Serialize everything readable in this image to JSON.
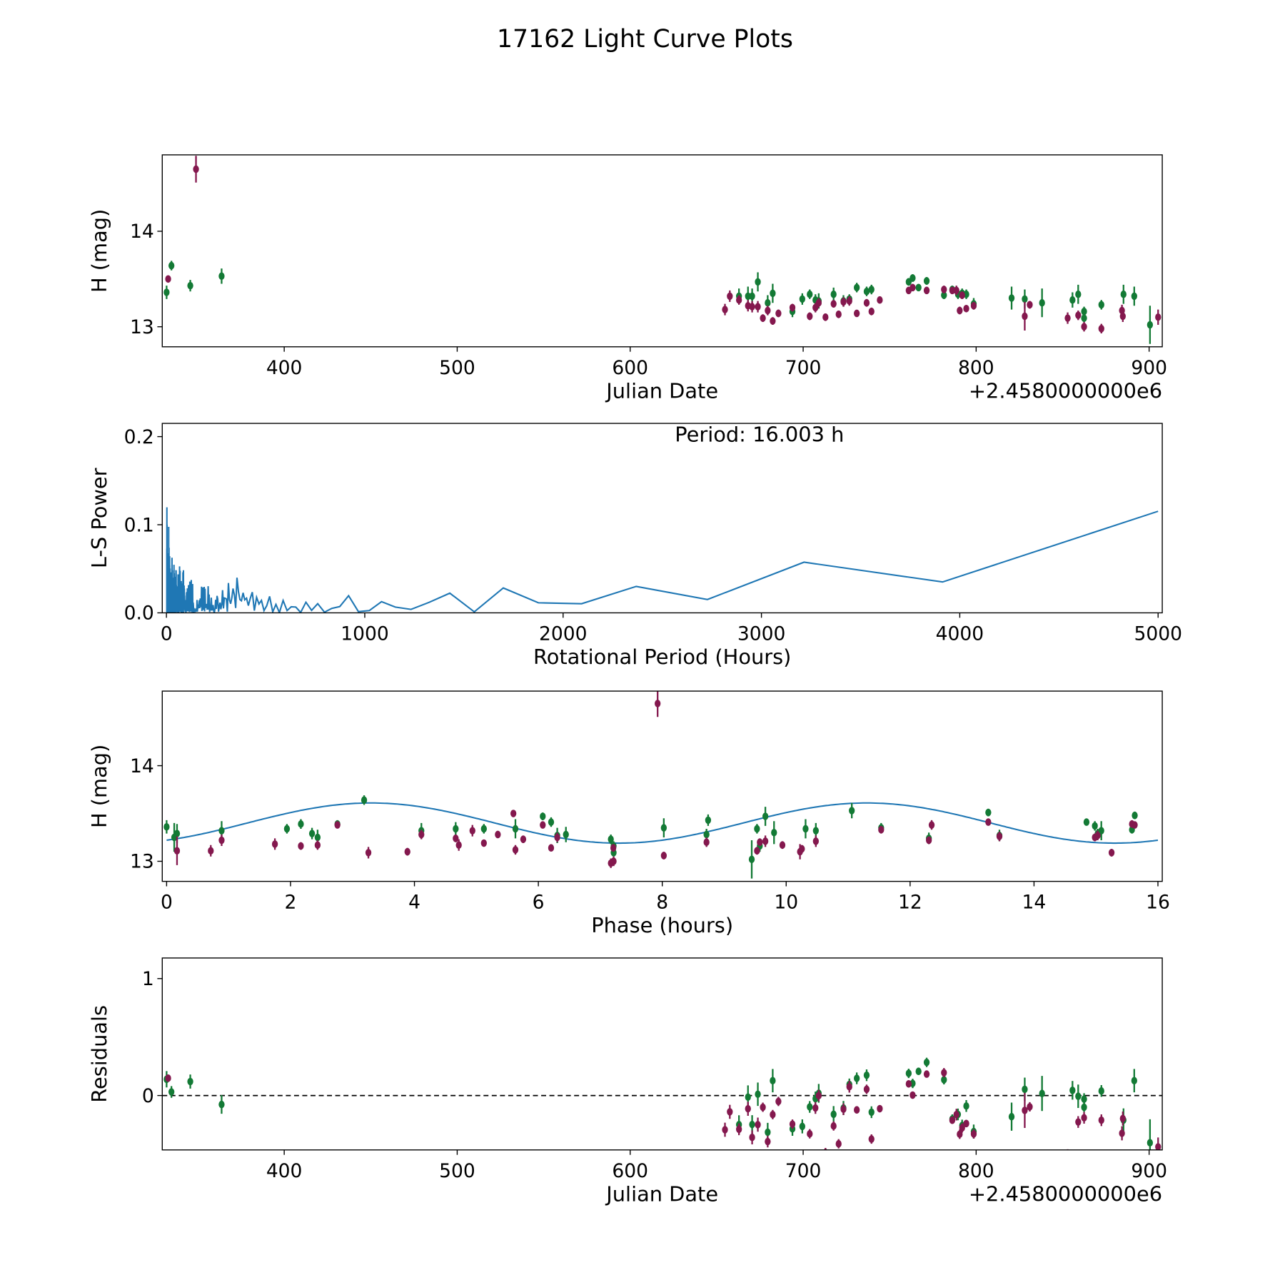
{
  "chart_data": {
    "type": "scatter",
    "title": "17162 Light Curve Plots",
    "colors": {
      "green": "#137a35",
      "purple": "#84184e",
      "line": "#1f77b4"
    },
    "series": [
      {
        "name": "green",
        "points": [
          [
            332.0,
            13.36,
            0.07
          ],
          [
            334.8,
            13.64,
            0.05
          ],
          [
            345.7,
            13.43,
            0.06
          ],
          [
            363.8,
            13.53,
            0.08
          ],
          [
            662.9,
            13.32,
            0.08
          ],
          [
            668.1,
            13.32,
            0.1
          ],
          [
            670.5,
            13.32,
            0.08
          ],
          [
            673.8,
            13.47,
            0.1
          ],
          [
            679.5,
            13.25,
            0.08
          ],
          [
            682.4,
            13.35,
            0.1
          ],
          [
            693.8,
            13.16,
            0.06
          ],
          [
            699.5,
            13.29,
            0.06
          ],
          [
            703.8,
            13.34,
            0.05
          ],
          [
            707.1,
            13.28,
            0.06
          ],
          [
            709.0,
            13.27,
            0.08
          ],
          [
            717.6,
            13.34,
            0.07
          ],
          [
            723.3,
            13.27,
            0.06
          ],
          [
            726.7,
            13.29,
            0.05
          ],
          [
            731.0,
            13.41,
            0.05
          ],
          [
            736.7,
            13.37,
            0.05
          ],
          [
            739.5,
            13.39,
            0.05
          ],
          [
            761.0,
            13.47,
            0.04
          ],
          [
            763.3,
            13.51,
            0.04
          ],
          [
            766.7,
            13.41,
            0.03
          ],
          [
            771.4,
            13.48,
            0.04
          ],
          [
            781.4,
            13.33,
            0.04
          ],
          [
            786.2,
            13.39,
            0.04
          ],
          [
            789.5,
            13.34,
            0.05
          ],
          [
            791.9,
            13.35,
            0.05
          ],
          [
            794.3,
            13.34,
            0.05
          ],
          [
            798.6,
            13.24,
            0.06
          ],
          [
            820.5,
            13.3,
            0.12
          ],
          [
            828.1,
            13.29,
            0.1
          ],
          [
            838.1,
            13.25,
            0.15
          ],
          [
            855.7,
            13.28,
            0.08
          ],
          [
            859.0,
            13.34,
            0.1
          ],
          [
            862.4,
            13.16,
            0.05
          ],
          [
            862.4,
            13.09,
            0.04
          ],
          [
            872.4,
            13.23,
            0.05
          ],
          [
            885.2,
            13.34,
            0.1
          ],
          [
            891.4,
            13.32,
            0.1
          ],
          [
            900.5,
            13.02,
            0.2
          ]
        ]
      },
      {
        "name": "purple",
        "points": [
          [
            332.9,
            13.5,
            0.03
          ],
          [
            349.0,
            14.65,
            0.14
          ],
          [
            654.8,
            13.18,
            0.06
          ],
          [
            657.6,
            13.32,
            0.06
          ],
          [
            662.9,
            13.28,
            0.05
          ],
          [
            668.1,
            13.22,
            0.06
          ],
          [
            670.5,
            13.21,
            0.06
          ],
          [
            673.8,
            13.21,
            0.06
          ],
          [
            676.7,
            13.09,
            0.04
          ],
          [
            679.5,
            13.17,
            0.05
          ],
          [
            682.4,
            13.06,
            0.04
          ],
          [
            685.7,
            13.14,
            0.04
          ],
          [
            693.8,
            13.2,
            0.04
          ],
          [
            703.8,
            13.11,
            0.04
          ],
          [
            707.1,
            13.2,
            0.05
          ],
          [
            709.0,
            13.25,
            0.05
          ],
          [
            712.9,
            13.1,
            0.04
          ],
          [
            717.6,
            13.24,
            0.04
          ],
          [
            720.5,
            13.13,
            0.04
          ],
          [
            723.3,
            13.26,
            0.05
          ],
          [
            726.7,
            13.27,
            0.05
          ],
          [
            731.0,
            13.14,
            0.03
          ],
          [
            736.7,
            13.25,
            0.04
          ],
          [
            739.5,
            13.16,
            0.04
          ],
          [
            744.3,
            13.28,
            0.03
          ],
          [
            761.0,
            13.38,
            0.03
          ],
          [
            763.3,
            13.41,
            0.03
          ],
          [
            771.4,
            13.38,
            0.03
          ],
          [
            781.4,
            13.39,
            0.04
          ],
          [
            786.2,
            13.38,
            0.03
          ],
          [
            788.6,
            13.38,
            0.05
          ],
          [
            790.5,
            13.17,
            0.04
          ],
          [
            791.9,
            13.33,
            0.04
          ],
          [
            794.3,
            13.19,
            0.03
          ],
          [
            798.6,
            13.22,
            0.04
          ],
          [
            828.1,
            13.11,
            0.15
          ],
          [
            831.0,
            13.23,
            0.04
          ],
          [
            852.9,
            13.09,
            0.06
          ],
          [
            859.0,
            13.12,
            0.05
          ],
          [
            862.4,
            13.0,
            0.05
          ],
          [
            872.4,
            12.98,
            0.05
          ],
          [
            884.3,
            13.17,
            0.06
          ],
          [
            884.8,
            13.11,
            0.06
          ],
          [
            905.2,
            13.1,
            0.08
          ]
        ]
      }
    ],
    "model": {
      "mean": 13.4,
      "amplitude": 0.21,
      "period_hours": 16.003,
      "peak_phase": 3.3
    },
    "panels": [
      {
        "id": "lightcurve",
        "xlabel": "Julian Date",
        "ylabel": "H (mag)",
        "offset_label": "+2.4580000000e6",
        "xlim": [
          329.5,
          907.6
        ],
        "ylim": [
          12.79,
          14.8
        ],
        "xticks": [
          400,
          500,
          600,
          700,
          800,
          900
        ],
        "xtick_labels": [
          "400",
          "500",
          "600",
          "700",
          "800",
          "900"
        ],
        "yticks": [
          13,
          14
        ],
        "ytick_labels": [
          "13",
          "14"
        ]
      },
      {
        "id": "periodogram",
        "xlabel": "Rotational Period (Hours)",
        "ylabel": "L-S Power",
        "annotation": "Period: 16.003 h",
        "xlim": [
          -21,
          5021
        ],
        "ylim": [
          0,
          0.215
        ],
        "period_range": [
          2,
          5000
        ],
        "xticks": [
          0,
          1000,
          2000,
          3000,
          4000,
          5000
        ],
        "xtick_labels": [
          "0",
          "1000",
          "2000",
          "3000",
          "4000",
          "5000"
        ],
        "yticks": [
          0,
          0.1,
          0.2
        ],
        "ytick_labels": [
          "0.0",
          "0.1",
          "0.2"
        ]
      },
      {
        "id": "phase",
        "xlabel": "Phase (hours)",
        "ylabel": "H (mag)",
        "xlim": [
          -0.07,
          16.07
        ],
        "ylim": [
          12.79,
          14.78
        ],
        "xticks": [
          0,
          2,
          4,
          6,
          8,
          10,
          12,
          14,
          16
        ],
        "xtick_labels": [
          "0",
          "2",
          "4",
          "6",
          "8",
          "10",
          "12",
          "14",
          "16"
        ],
        "yticks": [
          13,
          14
        ],
        "ytick_labels": [
          "13",
          "14"
        ]
      },
      {
        "id": "residuals",
        "xlabel": "Julian Date",
        "ylabel": "Residuals",
        "offset_label": "+2.4580000000e6",
        "xlim": [
          329.5,
          907.6
        ],
        "ylim": [
          -0.465,
          1.176
        ],
        "xticks": [
          400,
          500,
          600,
          700,
          800,
          900
        ],
        "xtick_labels": [
          "400",
          "500",
          "600",
          "700",
          "800",
          "900"
        ],
        "yticks": [
          0,
          1
        ],
        "ytick_labels": [
          "0",
          "1"
        ]
      }
    ]
  }
}
